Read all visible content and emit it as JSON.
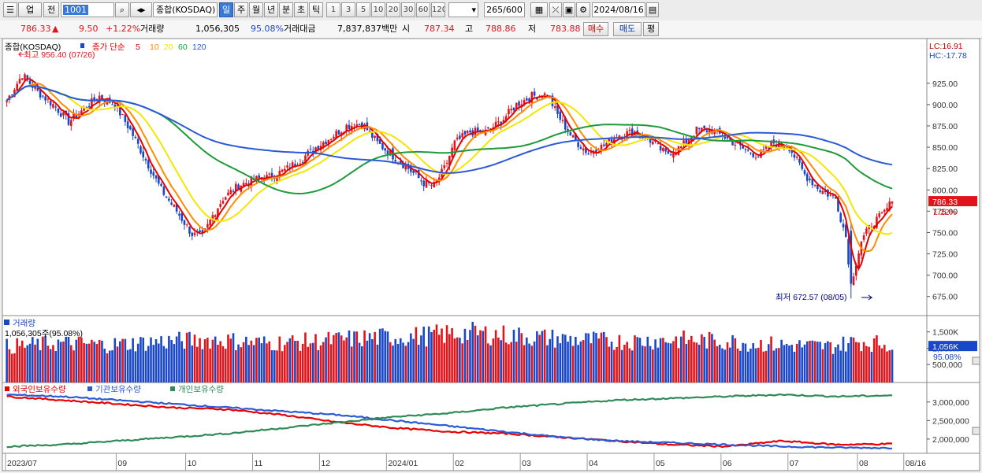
{
  "toolbar": {
    "market": "업",
    "prev": "전",
    "code": "1001",
    "index_name": "종합(KOSDAQ)",
    "periods": [
      "일",
      "주",
      "월",
      "년",
      "분",
      "초",
      "틱"
    ],
    "selected_period": "일",
    "intervals": [
      "1",
      "3",
      "5",
      "10",
      "20",
      "30",
      "60",
      "120"
    ],
    "count": "265/600",
    "date": "2024/08/16"
  },
  "infobar": {
    "price": "786.33",
    "change": "9.50",
    "change_pct": "+1.22%",
    "volume_label": "거래량",
    "volume": "1,056,305",
    "volume_ratio": "95.08%",
    "amount_label": "거래대금",
    "amount": "7,837,837백만",
    "open_label": "시",
    "open": "787.34",
    "high_label": "고",
    "high": "788.86",
    "low_label": "저",
    "low": "783.88",
    "buy_label": "매수",
    "sell_label": "매도",
    "eval_label": "평"
  },
  "colors": {
    "up": "#e0141a",
    "down": "#1a47c8",
    "ma5": "#e60000",
    "ma10": "#ff8c00",
    "ma20": "#f5e600",
    "ma60": "#1e9a3a",
    "ma120": "#2a5ad6",
    "foreign": "#e60000",
    "institution": "#2a5ad6",
    "individual": "#2e8b57"
  },
  "chart_data": [
    {
      "type": "candlestick",
      "title": "종합(KOSDAQ)",
      "legend_prefix": "종가 단순",
      "legend": [
        "5",
        "10",
        "20",
        "60",
        "120"
      ],
      "ylim": [
        660,
        970
      ],
      "yticks": [
        "925.00",
        "900.00",
        "875.00",
        "850.00",
        "825.00",
        "800.00",
        "775.00",
        "750.00",
        "725.00",
        "700.00",
        "675.00"
      ],
      "ytick_values": [
        925,
        900,
        875,
        850,
        825,
        800,
        775,
        750,
        725,
        700,
        675
      ],
      "lc": "LC:16.91",
      "hc": "HC:-17.78",
      "last_price_tag": "786.33",
      "last_pct_tag": "1.22%",
      "high_annotation": "최고 956.40 (07/26)",
      "low_annotation": "최저 672.57 (08/05)",
      "close_keypoints": [
        [
          0,
          905
        ],
        [
          6,
          935
        ],
        [
          12,
          915
        ],
        [
          18,
          900
        ],
        [
          24,
          880
        ],
        [
          30,
          895
        ],
        [
          36,
          910
        ],
        [
          42,
          900
        ],
        [
          48,
          870
        ],
        [
          54,
          835
        ],
        [
          60,
          800
        ],
        [
          66,
          775
        ],
        [
          72,
          748
        ],
        [
          76,
          745
        ],
        [
          80,
          770
        ],
        [
          84,
          790
        ],
        [
          90,
          805
        ],
        [
          96,
          812
        ],
        [
          102,
          815
        ],
        [
          108,
          823
        ],
        [
          114,
          835
        ],
        [
          120,
          850
        ],
        [
          126,
          862
        ],
        [
          132,
          875
        ],
        [
          138,
          878
        ],
        [
          144,
          855
        ],
        [
          150,
          840
        ],
        [
          156,
          825
        ],
        [
          162,
          808
        ],
        [
          166,
          805
        ],
        [
          170,
          825
        ],
        [
          174,
          855
        ],
        [
          180,
          868
        ],
        [
          186,
          868
        ],
        [
          192,
          880
        ],
        [
          198,
          900
        ],
        [
          204,
          910
        ],
        [
          210,
          912
        ],
        [
          214,
          888
        ],
        [
          220,
          860
        ],
        [
          226,
          843
        ],
        [
          232,
          852
        ],
        [
          238,
          865
        ],
        [
          244,
          868
        ],
        [
          250,
          858
        ],
        [
          256,
          842
        ],
        [
          262,
          850
        ],
        [
          268,
          870
        ],
        [
          274,
          870
        ],
        [
          280,
          860
        ],
        [
          286,
          848
        ],
        [
          292,
          840
        ],
        [
          298,
          855
        ],
        [
          304,
          850
        ],
        [
          310,
          818
        ],
        [
          316,
          800
        ],
        [
          322,
          790
        ],
        [
          326,
          745
        ],
        [
          328,
          690
        ],
        [
          332,
          740
        ],
        [
          336,
          760
        ],
        [
          340,
          770
        ],
        [
          344,
          786.33
        ]
      ],
      "xticks": [
        "2023/07",
        "09",
        "10",
        "11",
        "12",
        "2024/01",
        "02",
        "03",
        "04",
        "05",
        "06",
        "07",
        "08",
        "08/16"
      ],
      "xtick_bars": [
        0,
        43,
        70,
        96,
        122,
        148,
        174,
        200,
        226,
        252,
        278,
        304,
        331,
        349
      ]
    },
    {
      "type": "bar",
      "title": "거래량",
      "value_label": "1,056,305주(95.08%)",
      "yticks": [
        "1,500K",
        "1,000K",
        "500,000"
      ],
      "ytick_values": [
        1500,
        1000,
        500
      ],
      "ylim": [
        0,
        1950
      ],
      "last_tag": "1,056K",
      "last_pct_tag": "95.08%",
      "volume_keypoints": [
        [
          0,
          1000
        ],
        [
          20,
          1100
        ],
        [
          40,
          1050
        ],
        [
          60,
          1150
        ],
        [
          80,
          1200
        ],
        [
          100,
          1100
        ],
        [
          120,
          1150
        ],
        [
          140,
          1250
        ],
        [
          160,
          1300
        ],
        [
          180,
          1400
        ],
        [
          200,
          1300
        ],
        [
          220,
          1200
        ],
        [
          240,
          1150
        ],
        [
          260,
          1200
        ],
        [
          280,
          1150
        ],
        [
          300,
          1050
        ],
        [
          320,
          1000
        ],
        [
          330,
          1150
        ],
        [
          344,
          1056
        ]
      ]
    },
    {
      "type": "line",
      "series": [
        {
          "name": "외국인보유수량",
          "values": [
            3150000,
            3050000,
            2950000,
            2850000,
            2800000,
            2650000,
            2450000,
            2300000,
            2200000,
            2150000,
            2050000,
            1950000,
            1850000,
            1800000,
            1950000,
            1850000,
            1870000
          ]
        },
        {
          "name": "기관보유수량",
          "values": [
            3200000,
            3150000,
            3050000,
            2950000,
            2850000,
            2750000,
            2650000,
            2500000,
            2350000,
            2200000,
            2050000,
            1950000,
            1900000,
            1850000,
            1800000,
            1770000,
            1760000
          ]
        },
        {
          "name": "개인보유수량",
          "values": [
            1800000,
            1850000,
            1950000,
            2050000,
            2150000,
            2300000,
            2450000,
            2600000,
            2700000,
            2850000,
            2950000,
            3050000,
            3100000,
            3150000,
            3200000,
            3150000,
            3180000
          ]
        }
      ],
      "yticks": [
        "3,000,000",
        "2,500,000",
        "2,000,000"
      ],
      "ytick_values": [
        3000000,
        2500000,
        2000000
      ],
      "ylim": [
        1700000,
        3400000
      ]
    }
  ]
}
